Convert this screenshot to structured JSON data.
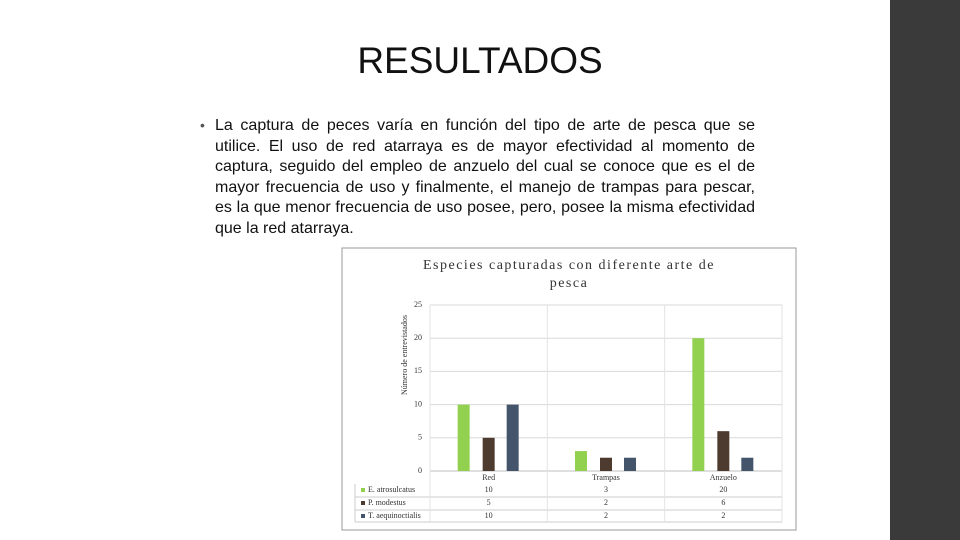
{
  "slide": {
    "title": "RESULTADOS",
    "bullet": "La captura de peces varía en función del tipo de arte de pesca que se utilice. El uso de red atarraya es de mayor efectividad al momento de captura, seguido del empleo de anzuelo del cual se conoce que es el de mayor frecuencia de uso y finalmente, el manejo de trampas para pescar, es la que menor frecuencia de uso posee, pero, posee la misma efectividad que la red atarraya."
  },
  "chart_data": {
    "type": "bar",
    "title": "Especies capturadas con diferente arte de pesca",
    "y_label": "Número de entrevistados",
    "categories": [
      "Red",
      "Trampas",
      "Anzuelo"
    ],
    "series": [
      {
        "name": "E. atrosulcatus",
        "color": "#92d050",
        "values": [
          10,
          3,
          20
        ]
      },
      {
        "name": "P. modestus",
        "color": "#4e3b30",
        "values": [
          5,
          2,
          6
        ]
      },
      {
        "name": "T. aequinoctialis",
        "color": "#44546a",
        "values": [
          10,
          2,
          2
        ]
      }
    ],
    "ylim": [
      0,
      25
    ],
    "yticks": [
      0,
      5,
      10,
      15,
      20,
      25
    ],
    "grid": true
  }
}
